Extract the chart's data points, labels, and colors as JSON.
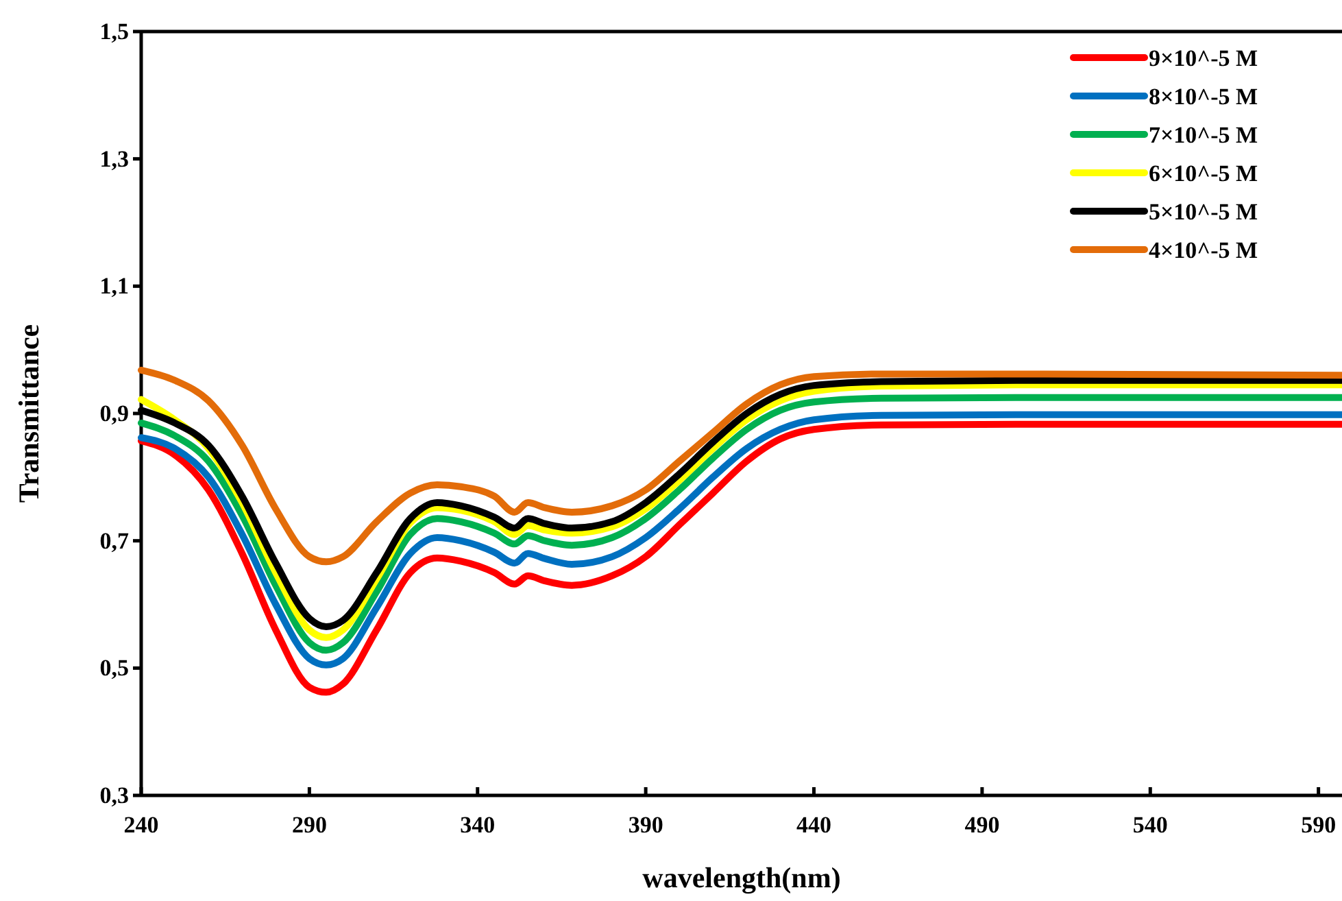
{
  "chart_data": {
    "type": "line",
    "xlabel": "wavelength(nm)",
    "ylabel": "Transmittance",
    "x": [
      240,
      250,
      260,
      270,
      280,
      290,
      295,
      300,
      310,
      320,
      328,
      335,
      345,
      351,
      355,
      360,
      368,
      380,
      390,
      400,
      410,
      420,
      430,
      440,
      460,
      500,
      597
    ],
    "series": [
      {
        "name": "9×10^-5 M",
        "color": "#ff0000",
        "values": [
          0.857,
          0.835,
          0.78,
          0.68,
          0.56,
          0.47,
          0.462,
          0.475,
          0.56,
          0.65,
          0.673,
          0.668,
          0.65,
          0.632,
          0.645,
          0.637,
          0.63,
          0.645,
          0.675,
          0.725,
          0.775,
          0.825,
          0.86,
          0.875,
          0.882,
          0.883,
          0.883
        ]
      },
      {
        "name": "8×10^-5 M",
        "color": "#0070c0",
        "values": [
          0.862,
          0.845,
          0.8,
          0.71,
          0.6,
          0.515,
          0.505,
          0.515,
          0.595,
          0.68,
          0.705,
          0.7,
          0.682,
          0.665,
          0.68,
          0.672,
          0.663,
          0.675,
          0.705,
          0.75,
          0.8,
          0.845,
          0.875,
          0.89,
          0.897,
          0.898,
          0.898
        ]
      },
      {
        "name": "7×10^-5 M",
        "color": "#00b050",
        "values": [
          0.885,
          0.865,
          0.825,
          0.74,
          0.63,
          0.54,
          0.528,
          0.54,
          0.62,
          0.71,
          0.735,
          0.73,
          0.712,
          0.695,
          0.708,
          0.7,
          0.693,
          0.705,
          0.735,
          0.78,
          0.83,
          0.875,
          0.905,
          0.918,
          0.924,
          0.925,
          0.925
        ]
      },
      {
        "name": "6×10^-5 M",
        "color": "#ffff00",
        "values": [
          0.922,
          0.89,
          0.845,
          0.76,
          0.65,
          0.56,
          0.548,
          0.56,
          0.64,
          0.728,
          0.752,
          0.748,
          0.73,
          0.71,
          0.724,
          0.717,
          0.712,
          0.722,
          0.75,
          0.795,
          0.845,
          0.89,
          0.92,
          0.935,
          0.943,
          0.945,
          0.945
        ]
      },
      {
        "name": "5×10^-5 M",
        "color": "#000000",
        "values": [
          0.905,
          0.885,
          0.85,
          0.77,
          0.665,
          0.578,
          0.565,
          0.575,
          0.65,
          0.735,
          0.76,
          0.755,
          0.737,
          0.72,
          0.735,
          0.727,
          0.72,
          0.73,
          0.76,
          0.805,
          0.855,
          0.9,
          0.93,
          0.944,
          0.95,
          0.952,
          0.952
        ]
      },
      {
        "name": "4×10^-5 M",
        "color": "#e36c09",
        "values": [
          0.968,
          0.952,
          0.92,
          0.85,
          0.75,
          0.675,
          0.667,
          0.675,
          0.73,
          0.775,
          0.788,
          0.785,
          0.77,
          0.745,
          0.76,
          0.752,
          0.745,
          0.755,
          0.78,
          0.825,
          0.87,
          0.915,
          0.945,
          0.958,
          0.962,
          0.962,
          0.96
        ]
      }
    ],
    "xlim": [
      240,
      597
    ],
    "xticks": [
      240,
      290,
      340,
      390,
      440,
      490,
      540,
      590
    ],
    "ylim": [
      0.3,
      1.5
    ],
    "yticks": [
      {
        "value": 0.3,
        "label": "0,3"
      },
      {
        "value": 0.5,
        "label": "0,5"
      },
      {
        "value": 0.7,
        "label": "0,7"
      },
      {
        "value": 0.9,
        "label": "0,9"
      },
      {
        "value": 1.1,
        "label": "1,1"
      },
      {
        "value": 1.3,
        "label": "1,3"
      },
      {
        "value": 1.5,
        "label": "1,5"
      }
    ],
    "grid": false,
    "legend": "top right",
    "marker": "none",
    "line_style": "solid"
  }
}
